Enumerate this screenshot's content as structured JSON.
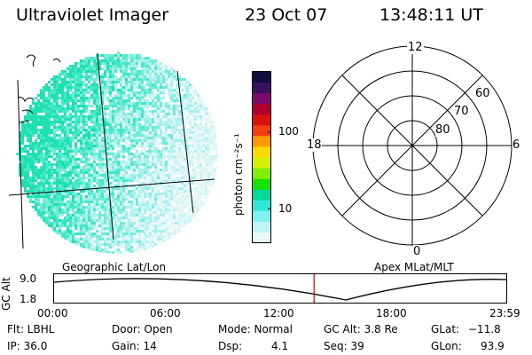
{
  "header": {
    "title": "Ultraviolet Imager",
    "date": "23 Oct 07",
    "time": "13:48:11 UT"
  },
  "colorbar": {
    "unit_label": "photon cm⁻²s⁻¹",
    "ticks": [
      "100",
      "10"
    ],
    "colors": [
      "#101040",
      "#3a1060",
      "#7a0a6a",
      "#b00030",
      "#d81010",
      "#f04010",
      "#ff9a00",
      "#ffd800",
      "#d8f000",
      "#80f000",
      "#18e000",
      "#00d89a",
      "#30e8d8",
      "#80f0f0",
      "#c0f4f4",
      "#e8f8f8"
    ]
  },
  "polar_plot": {
    "mlt_labels": {
      "top": "12",
      "right": "6",
      "bottom": "0",
      "left": "18"
    },
    "lat_labels": [
      "80",
      "70",
      "60"
    ]
  },
  "map_labels": {
    "left": "Geographic Lat/Lon",
    "right": "Apex MLat/MLT"
  },
  "altitude_plot": {
    "axis_label": "GC Alt",
    "y_ticks": [
      "9.0",
      "1.8"
    ],
    "x_ticks": [
      "00:00",
      "06:00",
      "12:00",
      "18:00",
      "23:59"
    ],
    "current_time_fraction": 0.575
  },
  "status": {
    "row1": {
      "flt": "Flt: LBHL",
      "door": "Door: Open",
      "mode": "Mode: Normal",
      "gc_alt": "GC Alt: 3.8 Re",
      "glat_label": "GLat:",
      "glat_value": "−11.8"
    },
    "row2": {
      "ip": "IP: 36.0",
      "gain": "Gain: 14",
      "dsp_label": "Dsp:",
      "dsp_value": "4.1",
      "seq": "Seq: 39",
      "glon_label": "GLon:",
      "glon_value": "93.9"
    }
  }
}
